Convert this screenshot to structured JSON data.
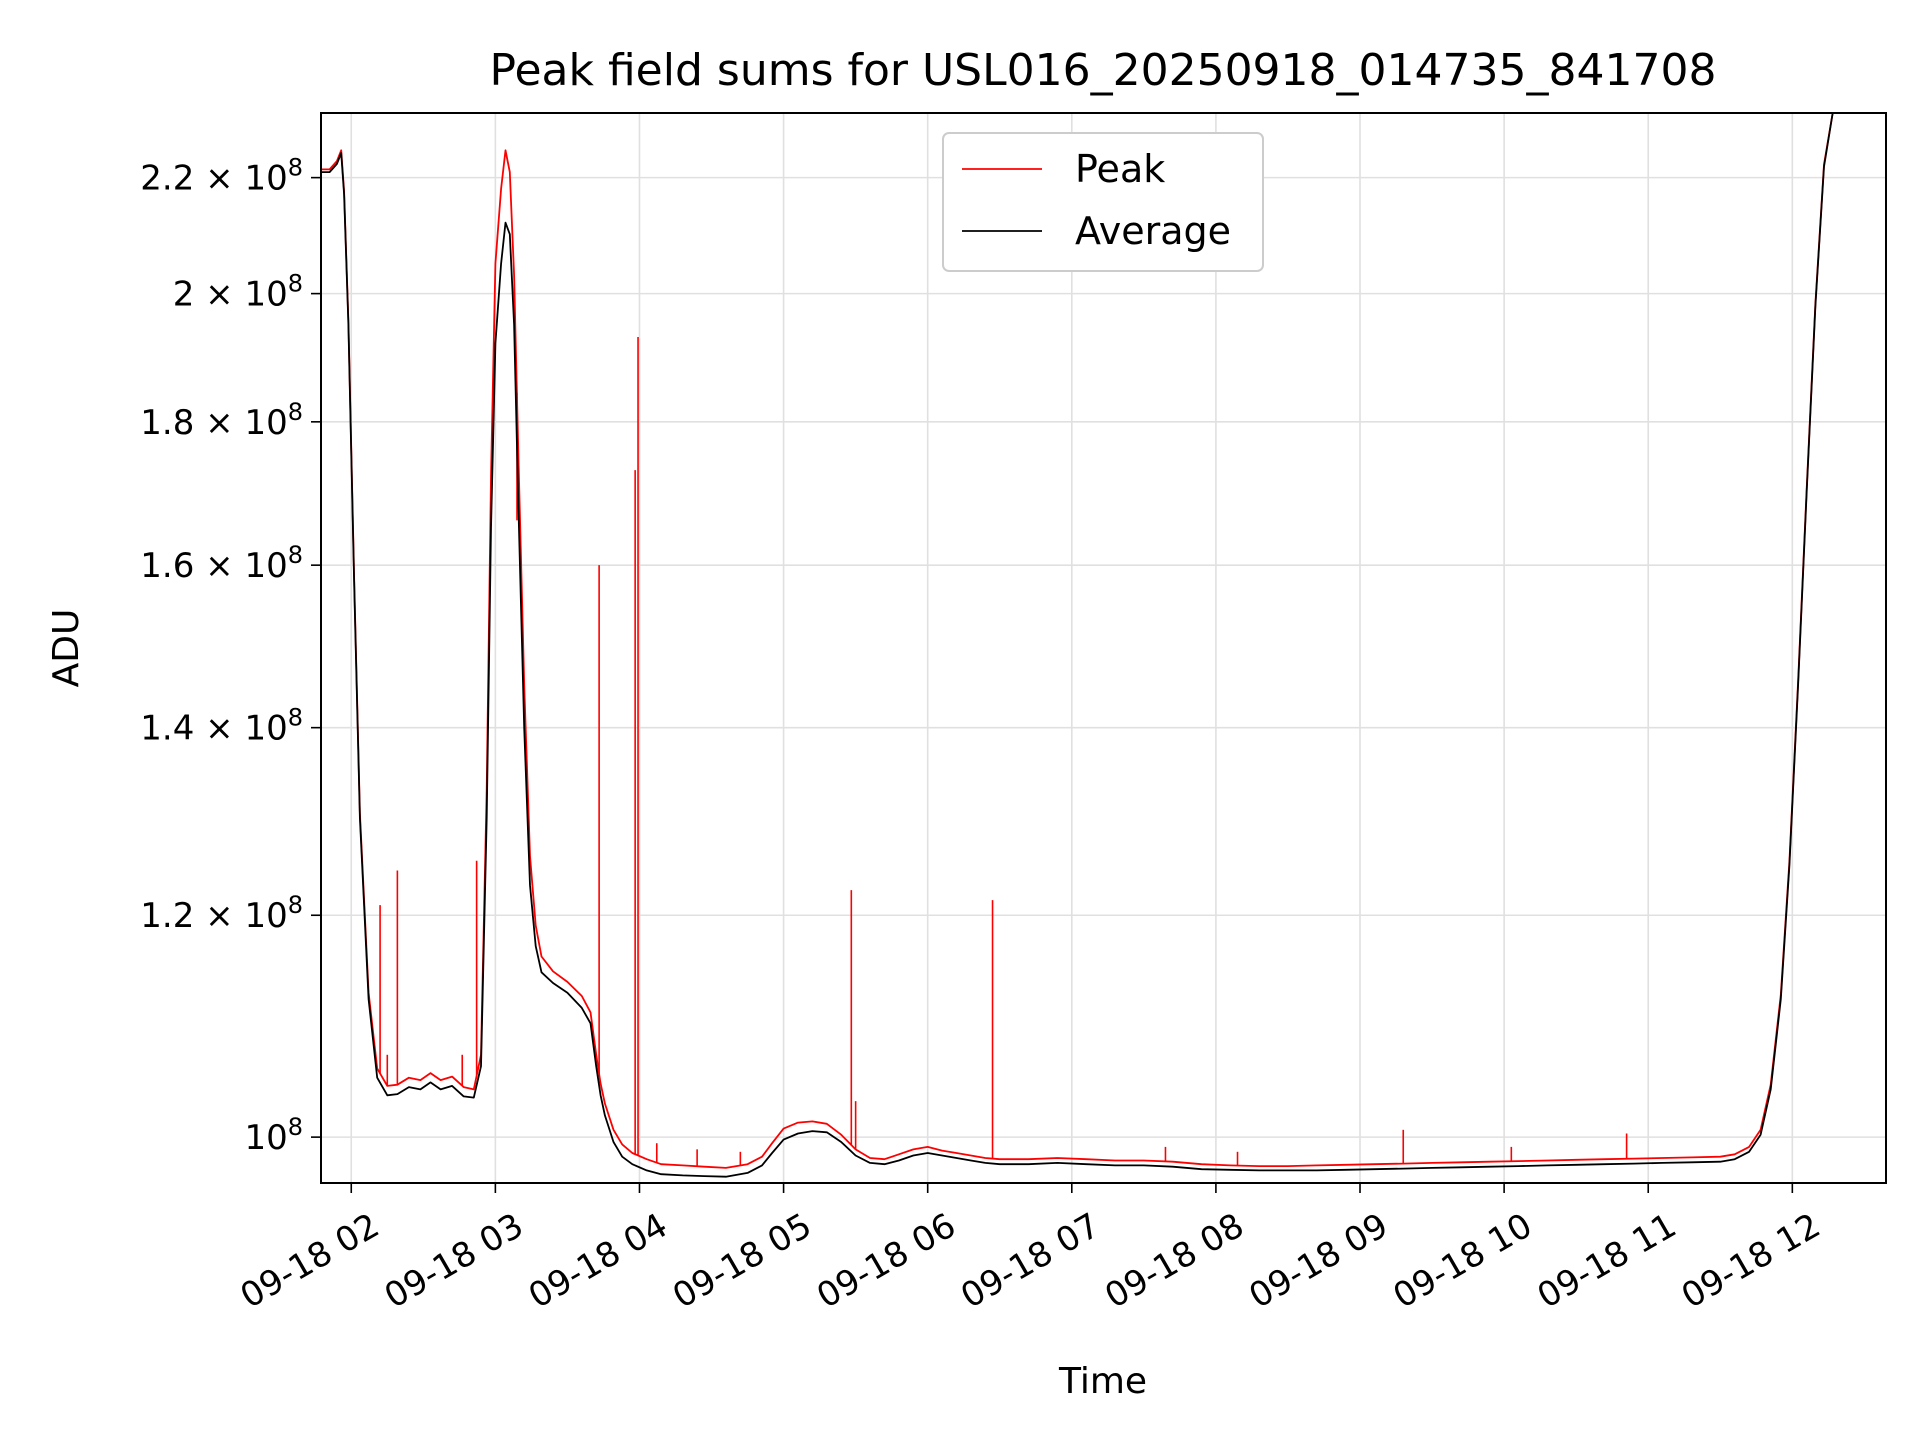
{
  "chart_data": {
    "type": "line",
    "title": "Peak field sums for USL016_20250918_014735_841708",
    "xlabel": "Time",
    "ylabel": "ADU",
    "yscale": "log",
    "grid": true,
    "legend_position": "upper-center",
    "x_unit": "hours after 09-18 00:00",
    "xlim": [
      1.79,
      12.65
    ],
    "ylim": [
      96300000,
      232000000
    ],
    "x_ticks": [
      {
        "value": 2,
        "label": "09-18 02"
      },
      {
        "value": 3,
        "label": "09-18 03"
      },
      {
        "value": 4,
        "label": "09-18 04"
      },
      {
        "value": 5,
        "label": "09-18 05"
      },
      {
        "value": 6,
        "label": "09-18 06"
      },
      {
        "value": 7,
        "label": "09-18 07"
      },
      {
        "value": 8,
        "label": "09-18 08"
      },
      {
        "value": 9,
        "label": "09-18 09"
      },
      {
        "value": 10,
        "label": "09-18 10"
      },
      {
        "value": 11,
        "label": "09-18 11"
      },
      {
        "value": 12,
        "label": "09-18 12"
      }
    ],
    "y_ticks": [
      {
        "value": 100000000,
        "mantissa": "10",
        "exponent": "8"
      },
      {
        "value": 120000000,
        "mantissa": "1.2 × 10",
        "exponent": "8"
      },
      {
        "value": 140000000,
        "mantissa": "1.4 × 10",
        "exponent": "8"
      },
      {
        "value": 160000000,
        "mantissa": "1.6 × 10",
        "exponent": "8"
      },
      {
        "value": 180000000,
        "mantissa": "1.8 × 10",
        "exponent": "8"
      },
      {
        "value": 200000000,
        "mantissa": "2 × 10",
        "exponent": "8"
      },
      {
        "value": 220000000,
        "mantissa": "2.2 × 10",
        "exponent": "8"
      }
    ],
    "series": [
      {
        "name": "Average",
        "color": "#000000",
        "points": [
          [
            1.79,
            221000000
          ],
          [
            1.85,
            221000000
          ],
          [
            1.9,
            222500000
          ],
          [
            1.93,
            224500000
          ],
          [
            1.95,
            217000000
          ],
          [
            1.98,
            195000000
          ],
          [
            2.02,
            158000000
          ],
          [
            2.06,
            130000000
          ],
          [
            2.12,
            112000000
          ],
          [
            2.18,
            105000000
          ],
          [
            2.25,
            103500000
          ],
          [
            2.32,
            103600000
          ],
          [
            2.4,
            104200000
          ],
          [
            2.48,
            104000000
          ],
          [
            2.55,
            104600000
          ],
          [
            2.62,
            104000000
          ],
          [
            2.7,
            104300000
          ],
          [
            2.78,
            103400000
          ],
          [
            2.85,
            103300000
          ],
          [
            2.9,
            106000000
          ],
          [
            2.94,
            130000000
          ],
          [
            2.97,
            165000000
          ],
          [
            3.0,
            192000000
          ],
          [
            3.04,
            205000000
          ],
          [
            3.07,
            212000000
          ],
          [
            3.1,
            210000000
          ],
          [
            3.13,
            195000000
          ],
          [
            3.16,
            168000000
          ],
          [
            3.2,
            140000000
          ],
          [
            3.24,
            123000000
          ],
          [
            3.28,
            117000000
          ],
          [
            3.32,
            114500000
          ],
          [
            3.4,
            113500000
          ],
          [
            3.5,
            112600000
          ],
          [
            3.6,
            111200000
          ],
          [
            3.66,
            109800000
          ],
          [
            3.7,
            106000000
          ],
          [
            3.73,
            103500000
          ],
          [
            3.76,
            101800000
          ],
          [
            3.82,
            99600000
          ],
          [
            3.88,
            98400000
          ],
          [
            3.95,
            97800000
          ],
          [
            4.05,
            97300000
          ],
          [
            4.15,
            97000000
          ],
          [
            4.3,
            96900000
          ],
          [
            4.45,
            96850000
          ],
          [
            4.6,
            96800000
          ],
          [
            4.75,
            97100000
          ],
          [
            4.85,
            97700000
          ],
          [
            4.92,
            98700000
          ],
          [
            5.0,
            99800000
          ],
          [
            5.1,
            100300000
          ],
          [
            5.2,
            100500000
          ],
          [
            5.3,
            100400000
          ],
          [
            5.4,
            99600000
          ],
          [
            5.5,
            98500000
          ],
          [
            5.6,
            97900000
          ],
          [
            5.7,
            97800000
          ],
          [
            5.8,
            98100000
          ],
          [
            5.9,
            98500000
          ],
          [
            6.0,
            98700000
          ],
          [
            6.1,
            98500000
          ],
          [
            6.2,
            98300000
          ],
          [
            6.3,
            98100000
          ],
          [
            6.4,
            97900000
          ],
          [
            6.5,
            97800000
          ],
          [
            6.7,
            97800000
          ],
          [
            6.9,
            97900000
          ],
          [
            7.1,
            97800000
          ],
          [
            7.3,
            97700000
          ],
          [
            7.5,
            97700000
          ],
          [
            7.7,
            97600000
          ],
          [
            7.9,
            97400000
          ],
          [
            8.1,
            97350000
          ],
          [
            8.3,
            97300000
          ],
          [
            8.5,
            97300000
          ],
          [
            8.7,
            97300000
          ],
          [
            8.9,
            97350000
          ],
          [
            9.1,
            97400000
          ],
          [
            9.3,
            97450000
          ],
          [
            9.5,
            97500000
          ],
          [
            9.7,
            97550000
          ],
          [
            9.9,
            97600000
          ],
          [
            10.1,
            97650000
          ],
          [
            10.3,
            97700000
          ],
          [
            10.5,
            97750000
          ],
          [
            10.7,
            97800000
          ],
          [
            10.9,
            97850000
          ],
          [
            11.1,
            97900000
          ],
          [
            11.3,
            97950000
          ],
          [
            11.5,
            98000000
          ],
          [
            11.6,
            98200000
          ],
          [
            11.7,
            98800000
          ],
          [
            11.78,
            100200000
          ],
          [
            11.85,
            104000000
          ],
          [
            11.92,
            112000000
          ],
          [
            11.98,
            125000000
          ],
          [
            12.04,
            145000000
          ],
          [
            12.1,
            170000000
          ],
          [
            12.16,
            198000000
          ],
          [
            12.22,
            222000000
          ],
          [
            12.28,
            232000000
          ]
        ]
      },
      {
        "name": "Peak",
        "color": "#ff0000",
        "points": [
          [
            1.79,
            221500000
          ],
          [
            1.85,
            221500000
          ],
          [
            1.9,
            223000000
          ],
          [
            1.93,
            225000000
          ],
          [
            1.95,
            217500000
          ],
          [
            1.98,
            195500000
          ],
          [
            2.02,
            158500000
          ],
          [
            2.06,
            130500000
          ],
          [
            2.12,
            112600000
          ],
          [
            2.18,
            105800000
          ],
          [
            2.25,
            104300000
          ],
          [
            2.32,
            104400000
          ],
          [
            2.4,
            105000000
          ],
          [
            2.48,
            104800000
          ],
          [
            2.55,
            105400000
          ],
          [
            2.62,
            104800000
          ],
          [
            2.7,
            105100000
          ],
          [
            2.78,
            104200000
          ],
          [
            2.85,
            104000000
          ],
          [
            2.9,
            107000000
          ],
          [
            2.94,
            133000000
          ],
          [
            2.97,
            172000000
          ],
          [
            3.0,
            205000000
          ],
          [
            3.04,
            218000000
          ],
          [
            3.07,
            225000000
          ],
          [
            3.1,
            221000000
          ],
          [
            3.13,
            203000000
          ],
          [
            3.16,
            175000000
          ],
          [
            3.2,
            145000000
          ],
          [
            3.24,
            126000000
          ],
          [
            3.28,
            119000000
          ],
          [
            3.32,
            116000000
          ],
          [
            3.4,
            114600000
          ],
          [
            3.5,
            113600000
          ],
          [
            3.6,
            112300000
          ],
          [
            3.66,
            110800000
          ],
          [
            3.7,
            107000000
          ],
          [
            3.73,
            104500000
          ],
          [
            3.76,
            102800000
          ],
          [
            3.82,
            100600000
          ],
          [
            3.88,
            99400000
          ],
          [
            3.95,
            98700000
          ],
          [
            4.05,
            98200000
          ],
          [
            4.15,
            97800000
          ],
          [
            4.3,
            97700000
          ],
          [
            4.45,
            97600000
          ],
          [
            4.6,
            97500000
          ],
          [
            4.75,
            97800000
          ],
          [
            4.85,
            98400000
          ],
          [
            4.92,
            99500000
          ],
          [
            5.0,
            100700000
          ],
          [
            5.1,
            101200000
          ],
          [
            5.2,
            101300000
          ],
          [
            5.3,
            101100000
          ],
          [
            5.4,
            100200000
          ],
          [
            5.5,
            99000000
          ],
          [
            5.6,
            98300000
          ],
          [
            5.7,
            98200000
          ],
          [
            5.8,
            98600000
          ],
          [
            5.9,
            99000000
          ],
          [
            6.0,
            99200000
          ],
          [
            6.1,
            98900000
          ],
          [
            6.2,
            98700000
          ],
          [
            6.3,
            98500000
          ],
          [
            6.4,
            98300000
          ],
          [
            6.5,
            98200000
          ],
          [
            6.7,
            98200000
          ],
          [
            6.9,
            98300000
          ],
          [
            7.1,
            98200000
          ],
          [
            7.3,
            98100000
          ],
          [
            7.5,
            98100000
          ],
          [
            7.7,
            98000000
          ],
          [
            7.9,
            97800000
          ],
          [
            8.1,
            97700000
          ],
          [
            8.3,
            97650000
          ],
          [
            8.5,
            97650000
          ],
          [
            8.7,
            97700000
          ],
          [
            8.9,
            97750000
          ],
          [
            9.1,
            97800000
          ],
          [
            9.3,
            97850000
          ],
          [
            9.5,
            97900000
          ],
          [
            9.7,
            97950000
          ],
          [
            9.9,
            98000000
          ],
          [
            10.1,
            98050000
          ],
          [
            10.3,
            98100000
          ],
          [
            10.5,
            98150000
          ],
          [
            10.7,
            98200000
          ],
          [
            10.9,
            98250000
          ],
          [
            11.1,
            98300000
          ],
          [
            11.3,
            98350000
          ],
          [
            11.5,
            98400000
          ],
          [
            11.6,
            98600000
          ],
          [
            11.7,
            99200000
          ],
          [
            11.78,
            100600000
          ],
          [
            11.85,
            104400000
          ],
          [
            11.92,
            112400000
          ],
          [
            11.98,
            125400000
          ],
          [
            12.04,
            145400000
          ],
          [
            12.1,
            170400000
          ],
          [
            12.16,
            198400000
          ],
          [
            12.22,
            222400000
          ],
          [
            12.28,
            232000000
          ]
        ],
        "spikes": [
          [
            2.2,
            121000000
          ],
          [
            2.25,
            107000000
          ],
          [
            2.32,
            124500000
          ],
          [
            2.77,
            107000000
          ],
          [
            2.87,
            125500000
          ],
          [
            3.15,
            166000000
          ],
          [
            3.72,
            160000000
          ],
          [
            3.97,
            173000000
          ],
          [
            3.99,
            193000000
          ],
          [
            4.12,
            99500000
          ],
          [
            4.4,
            99000000
          ],
          [
            4.7,
            98800000
          ],
          [
            5.47,
            122500000
          ],
          [
            5.5,
            103000000
          ],
          [
            6.45,
            121500000
          ],
          [
            7.65,
            99200000
          ],
          [
            8.15,
            98800000
          ],
          [
            9.3,
            100600000
          ],
          [
            10.05,
            99200000
          ],
          [
            10.85,
            100300000
          ]
        ]
      }
    ],
    "legend": [
      {
        "label": "Peak",
        "color": "#ff0000"
      },
      {
        "label": "Average",
        "color": "#000000"
      }
    ]
  }
}
